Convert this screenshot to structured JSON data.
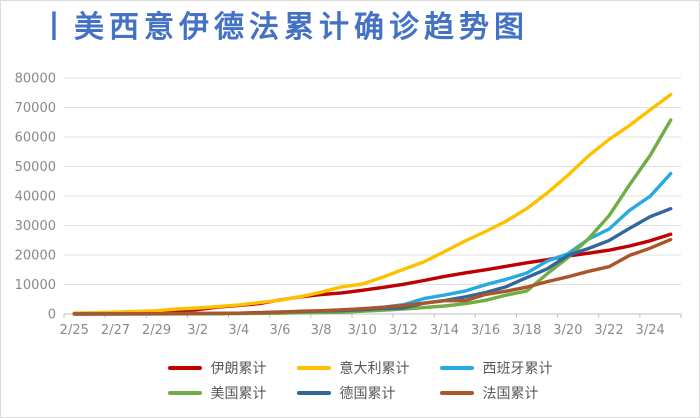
{
  "header": {
    "title": "丨美西意伊德法累计确诊趋势图",
    "title_color": "#4472C4"
  },
  "colors": {
    "grid": "#e0e0e0",
    "axis": "#c2c2c2",
    "tick_text": "#8a8a8a",
    "legend_text": "#595959",
    "frame_border": "#dcdcdc",
    "background": "#ffffff"
  },
  "chart_data": {
    "type": "line",
    "title": "美西意伊德法累计确诊趋势图",
    "xlabel": "",
    "ylabel": "",
    "ylim": [
      0,
      80000
    ],
    "y_ticks": [
      0,
      10000,
      20000,
      30000,
      40000,
      50000,
      60000,
      70000,
      80000
    ],
    "grid": "horizontal",
    "legend_position": "bottom",
    "legend_columns": 3,
    "x": [
      "2/25",
      "2/26",
      "2/27",
      "2/28",
      "2/29",
      "3/1",
      "3/2",
      "3/3",
      "3/4",
      "3/5",
      "3/6",
      "3/7",
      "3/8",
      "3/9",
      "3/10",
      "3/11",
      "3/12",
      "3/13",
      "3/14",
      "3/15",
      "3/16",
      "3/17",
      "3/18",
      "3/19",
      "3/20",
      "3/21",
      "3/22",
      "3/23",
      "3/24",
      "3/25"
    ],
    "x_tick_labels": [
      "2/25",
      "2/27",
      "2/29",
      "3/2",
      "3/4",
      "3/6",
      "3/8",
      "3/10",
      "3/12",
      "3/14",
      "3/16",
      "3/18",
      "3/20",
      "3/22",
      "3/24"
    ],
    "series": [
      {
        "key": "iran",
        "name": "伊朗累计",
        "color": "#C00000",
        "values": [
          95,
          139,
          245,
          388,
          593,
          978,
          1501,
          2336,
          2922,
          3513,
          4747,
          5823,
          6566,
          7161,
          8042,
          9000,
          10075,
          11364,
          12729,
          13938,
          14991,
          16169,
          17361,
          18407,
          19644,
          20610,
          21638,
          23049,
          24811,
          27017
        ]
      },
      {
        "key": "italy",
        "name": "意大利累计",
        "color": "#FFC000",
        "values": [
          322,
          445,
          650,
          888,
          1128,
          1694,
          2036,
          2502,
          3089,
          3858,
          4636,
          5883,
          7375,
          9172,
          10149,
          12462,
          15113,
          17660,
          21157,
          24747,
          27980,
          31506,
          35713,
          41035,
          47021,
          53578,
          59138,
          63927,
          69176,
          74386
        ]
      },
      {
        "key": "spain",
        "name": "西班牙累计",
        "color": "#27AAE1",
        "values": [
          6,
          13,
          15,
          32,
          45,
          84,
          120,
          165,
          222,
          259,
          400,
          500,
          673,
          1073,
          1695,
          2277,
          3146,
          5232,
          6391,
          7798,
          9942,
          11748,
          13910,
          17963,
          20410,
          25374,
          28768,
          35136,
          39885,
          47610
        ]
      },
      {
        "key": "us",
        "name": "美国累计",
        "color": "#70AD47",
        "values": [
          53,
          57,
          58,
          60,
          68,
          74,
          98,
          118,
          149,
          217,
          262,
          402,
          518,
          583,
          959,
          1281,
          1663,
          2179,
          2727,
          3499,
          4632,
          6421,
          7783,
          13677,
          19100,
          25489,
          33272,
          43843,
          53740,
          65778
        ]
      },
      {
        "key": "germany",
        "name": "德国累计",
        "color": "#31679B",
        "values": [
          17,
          27,
          46,
          48,
          79,
          130,
          159,
          196,
          262,
          482,
          670,
          799,
          1040,
          1176,
          1457,
          1908,
          2078,
          3675,
          4585,
          5795,
          7272,
          9257,
          12327,
          15320,
          19848,
          22213,
          24873,
          29056,
          32986,
          35700
        ]
      },
      {
        "key": "france",
        "name": "法国累计",
        "color": "#A9562B",
        "values": [
          13,
          18,
          38,
          57,
          100,
          130,
          191,
          212,
          285,
          423,
          613,
          949,
          1126,
          1412,
          1784,
          2281,
          2876,
          3661,
          4499,
          4499,
          6633,
          7730,
          9134,
          10995,
          12612,
          14459,
          16018,
          19856,
          22304,
          25233
        ]
      }
    ]
  }
}
